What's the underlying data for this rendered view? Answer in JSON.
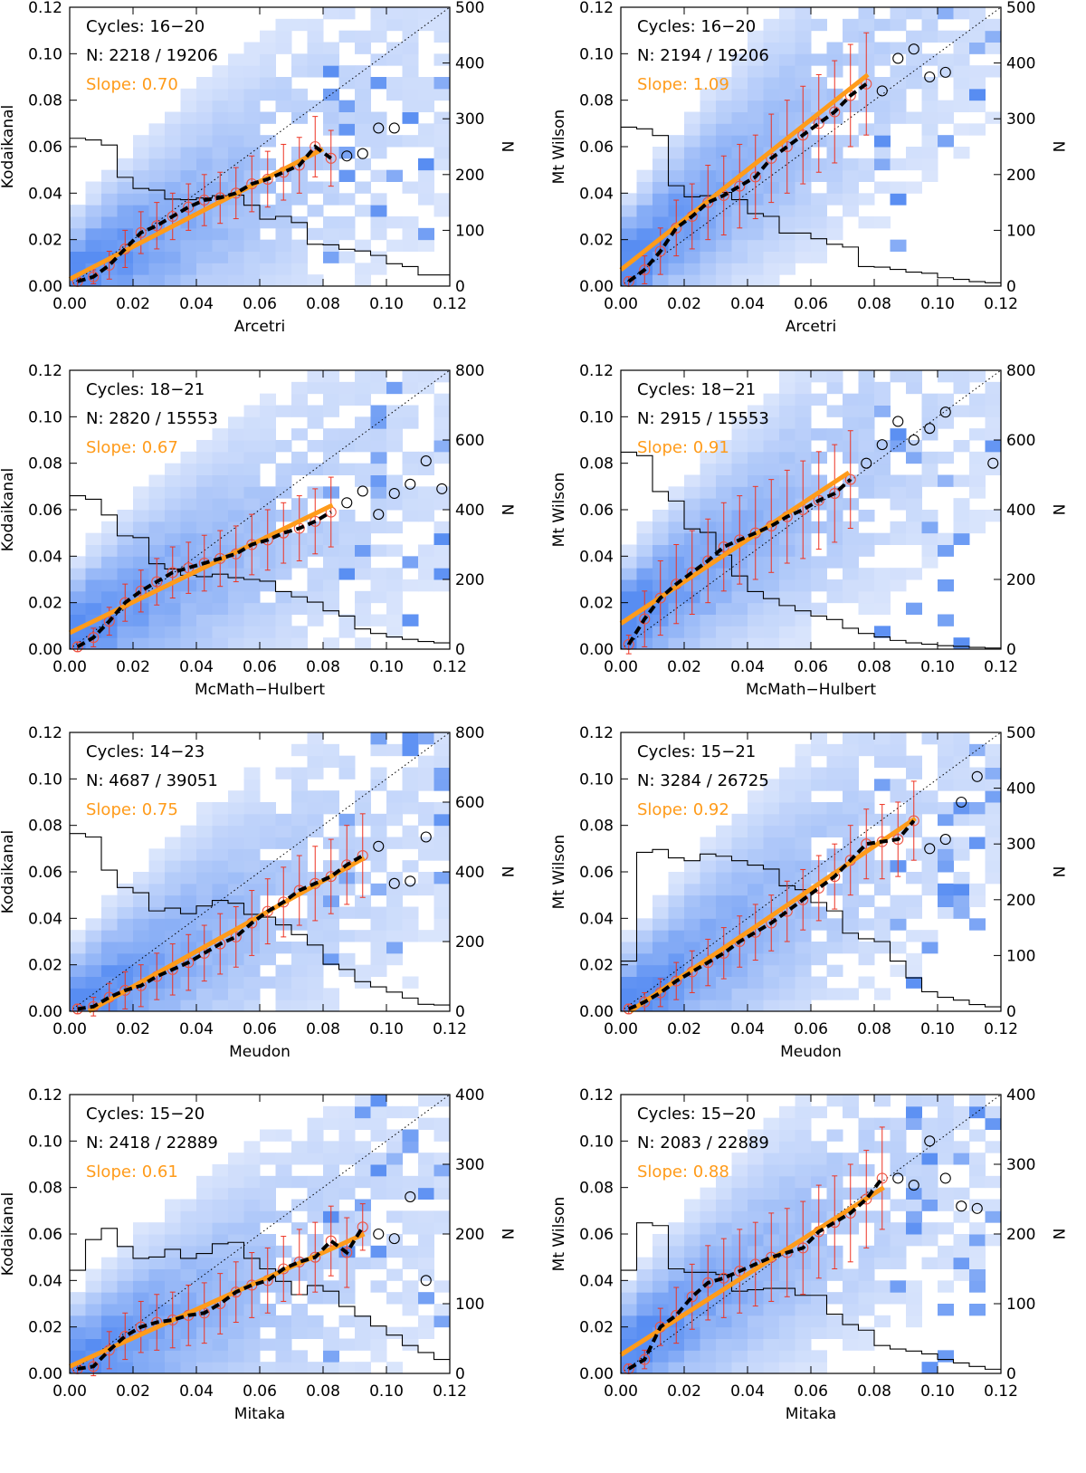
{
  "figure": {
    "description_title": ""
  },
  "colors": {
    "fit_line": "#ff9b1a",
    "error_bar": "#ee3322",
    "binned_point": "#ee5544",
    "excluded_point": "#000000",
    "histogram": "#000000",
    "heatmap_low": "#f0f4fe",
    "heatmap_high": "#3d7bf0"
  },
  "chart_data": [
    {
      "type": "scatter",
      "xlabel": "Arcetri",
      "ylabel": "Kodaikanal",
      "y2label": "N",
      "xlim": [
        0,
        0.12
      ],
      "ylim": [
        0,
        0.12
      ],
      "y2lim": [
        0,
        500
      ],
      "y2ticks": [
        0,
        100,
        200,
        300,
        400,
        500
      ],
      "cycles": "Cycles: 16−20",
      "n_text": "N: 2218 / 19206",
      "slope_text": "Slope: 0.70",
      "slope": 0.7,
      "fit_x": [
        0.0,
        0.08
      ],
      "fit_y": [
        0.003,
        0.059
      ],
      "binned_x": [
        0.0025,
        0.0075,
        0.0125,
        0.0175,
        0.0225,
        0.0275,
        0.0325,
        0.0375,
        0.0425,
        0.0475,
        0.0525,
        0.0575,
        0.0625,
        0.0675,
        0.0725,
        0.0775,
        0.0825
      ],
      "binned_y": [
        0.002,
        0.004,
        0.009,
        0.016,
        0.023,
        0.026,
        0.03,
        0.034,
        0.037,
        0.038,
        0.04,
        0.044,
        0.046,
        0.049,
        0.052,
        0.06,
        0.055
      ],
      "binned_err": [
        0.002,
        0.003,
        0.006,
        0.008,
        0.009,
        0.01,
        0.01,
        0.01,
        0.011,
        0.011,
        0.011,
        0.012,
        0.012,
        0.012,
        0.012,
        0.013,
        0.012
      ],
      "excluded_x": [
        0.0875,
        0.0925,
        0.0975,
        0.1025
      ],
      "excluded_y": [
        0.056,
        0.057,
        0.068,
        0.068
      ],
      "hist_edges_start": 0.0,
      "hist_bin": 0.005,
      "hist_counts": [
        265,
        262,
        253,
        195,
        175,
        172,
        156,
        155,
        158,
        162,
        163,
        145,
        120,
        125,
        114,
        75,
        74,
        66,
        63,
        55,
        40,
        35,
        20,
        20,
        12,
        9,
        6,
        3,
        0,
        0
      ]
    },
    {
      "type": "scatter",
      "xlabel": "Arcetri",
      "ylabel": "Mt Wilson",
      "y2label": "N",
      "xlim": [
        0,
        0.12
      ],
      "ylim": [
        0,
        0.12
      ],
      "y2lim": [
        0,
        500
      ],
      "y2ticks": [
        0,
        100,
        200,
        300,
        400,
        500
      ],
      "cycles": "Cycles: 16−20",
      "n_text": "N: 2194 / 19206",
      "slope_text": "Slope: 1.09",
      "slope": 1.09,
      "fit_x": [
        0.0,
        0.078
      ],
      "fit_y": [
        0.007,
        0.091
      ],
      "binned_x": [
        0.0025,
        0.0075,
        0.0125,
        0.0175,
        0.0225,
        0.0275,
        0.0325,
        0.0375,
        0.0425,
        0.0475,
        0.0525,
        0.0575,
        0.0625,
        0.0675,
        0.0725,
        0.0775
      ],
      "binned_y": [
        0.002,
        0.007,
        0.015,
        0.025,
        0.03,
        0.036,
        0.039,
        0.043,
        0.047,
        0.055,
        0.06,
        0.065,
        0.07,
        0.075,
        0.082,
        0.087
      ],
      "binned_err": [
        0.002,
        0.006,
        0.01,
        0.012,
        0.014,
        0.016,
        0.017,
        0.018,
        0.018,
        0.019,
        0.02,
        0.021,
        0.021,
        0.022,
        0.022,
        0.022
      ],
      "excluded_x": [
        0.0825,
        0.0875,
        0.0925,
        0.0975,
        0.1025
      ],
      "excluded_y": [
        0.084,
        0.098,
        0.102,
        0.09,
        0.092
      ],
      "hist_edges_start": 0.0,
      "hist_bin": 0.005,
      "hist_counts": [
        285,
        282,
        270,
        180,
        160,
        162,
        168,
        155,
        130,
        125,
        95,
        95,
        85,
        75,
        70,
        35,
        34,
        30,
        25,
        23,
        15,
        12,
        8,
        6,
        5,
        4,
        2,
        1,
        0,
        0
      ]
    },
    {
      "type": "scatter",
      "xlabel": "McMath−Hulbert",
      "ylabel": "Kodaikanal",
      "y2label": "N",
      "xlim": [
        0,
        0.12
      ],
      "ylim": [
        0,
        0.12
      ],
      "y2lim": [
        0,
        800
      ],
      "y2ticks": [
        0,
        200,
        400,
        600,
        800
      ],
      "cycles": "Cycles: 18−21",
      "n_text": "N: 2820 / 15553",
      "slope_text": "Slope: 0.67",
      "slope": 0.67,
      "fit_x": [
        0.0,
        0.083
      ],
      "fit_y": [
        0.007,
        0.062
      ],
      "binned_x": [
        0.0025,
        0.0075,
        0.0125,
        0.0175,
        0.0225,
        0.0275,
        0.0325,
        0.0375,
        0.0425,
        0.0475,
        0.0525,
        0.0575,
        0.0625,
        0.0675,
        0.0725,
        0.0775,
        0.0825
      ],
      "binned_y": [
        0.001,
        0.005,
        0.012,
        0.02,
        0.025,
        0.029,
        0.033,
        0.035,
        0.037,
        0.039,
        0.041,
        0.045,
        0.047,
        0.05,
        0.052,
        0.055,
        0.059
      ],
      "binned_err": [
        0.002,
        0.004,
        0.006,
        0.008,
        0.009,
        0.01,
        0.011,
        0.011,
        0.012,
        0.012,
        0.012,
        0.013,
        0.013,
        0.013,
        0.014,
        0.014,
        0.015
      ],
      "excluded_x": [
        0.0875,
        0.0925,
        0.0975,
        0.1025,
        0.1075,
        0.1125,
        0.1175
      ],
      "excluded_y": [
        0.063,
        0.068,
        0.058,
        0.067,
        0.071,
        0.081,
        0.069
      ],
      "hist_edges_start": 0.0,
      "hist_bin": 0.005,
      "hist_counts": [
        440,
        430,
        385,
        325,
        320,
        245,
        230,
        212,
        208,
        215,
        205,
        200,
        195,
        165,
        150,
        135,
        110,
        95,
        58,
        45,
        35,
        28,
        22,
        18,
        10,
        8,
        5,
        3,
        0,
        0
      ]
    },
    {
      "type": "scatter",
      "xlabel": "McMath−Hulbert",
      "ylabel": "Mt Wilson",
      "y2label": "N",
      "xlim": [
        0,
        0.12
      ],
      "ylim": [
        0,
        0.12
      ],
      "y2lim": [
        0,
        800
      ],
      "y2ticks": [
        0,
        200,
        400,
        600,
        800
      ],
      "cycles": "Cycles: 18−21",
      "n_text": "N: 2915 / 15553",
      "slope_text": "Slope: 0.91",
      "slope": 0.91,
      "fit_x": [
        0.0,
        0.072
      ],
      "fit_y": [
        0.011,
        0.076
      ],
      "binned_x": [
        0.0025,
        0.0075,
        0.0125,
        0.0175,
        0.0225,
        0.0275,
        0.0325,
        0.0375,
        0.0425,
        0.0475,
        0.0525,
        0.0575,
        0.0625,
        0.0675,
        0.0725
      ],
      "binned_y": [
        0.002,
        0.013,
        0.022,
        0.028,
        0.033,
        0.038,
        0.044,
        0.047,
        0.05,
        0.053,
        0.057,
        0.06,
        0.064,
        0.067,
        0.073
      ],
      "binned_err": [
        0.004,
        0.012,
        0.016,
        0.017,
        0.018,
        0.018,
        0.019,
        0.019,
        0.02,
        0.02,
        0.02,
        0.021,
        0.021,
        0.021,
        0.021
      ],
      "excluded_x": [
        0.0775,
        0.0825,
        0.0875,
        0.0925,
        0.0975,
        0.1025,
        0.1175
      ],
      "excluded_y": [
        0.08,
        0.088,
        0.098,
        0.09,
        0.095,
        0.102,
        0.08
      ],
      "hist_edges_start": 0.0,
      "hist_bin": 0.005,
      "hist_counts": [
        565,
        555,
        452,
        425,
        345,
        335,
        270,
        210,
        165,
        145,
        125,
        110,
        95,
        85,
        60,
        45,
        35,
        25,
        18,
        14,
        10,
        8,
        5,
        3,
        2,
        1,
        0,
        0,
        0,
        0
      ]
    },
    {
      "type": "scatter",
      "xlabel": "Meudon",
      "ylabel": "Kodaikanal",
      "y2label": "N",
      "xlim": [
        0,
        0.12
      ],
      "ylim": [
        0,
        0.12
      ],
      "y2lim": [
        0,
        800
      ],
      "y2ticks": [
        0,
        200,
        400,
        600,
        800
      ],
      "cycles": "Cycles: 14−23",
      "n_text": "N: 4687 / 39051",
      "slope_text": "Slope: 0.75",
      "slope": 0.75,
      "fit_x": [
        0.006,
        0.093
      ],
      "fit_y": [
        0.0,
        0.066
      ],
      "binned_x": [
        0.0025,
        0.0075,
        0.0125,
        0.0175,
        0.0225,
        0.0275,
        0.0325,
        0.0375,
        0.0425,
        0.0475,
        0.0525,
        0.0575,
        0.0625,
        0.0675,
        0.0725,
        0.0775,
        0.0825,
        0.0875,
        0.0925
      ],
      "binned_y": [
        0.001,
        0.002,
        0.006,
        0.009,
        0.011,
        0.015,
        0.018,
        0.021,
        0.025,
        0.029,
        0.032,
        0.038,
        0.043,
        0.047,
        0.052,
        0.055,
        0.058,
        0.063,
        0.067
      ],
      "binned_err": [
        0.002,
        0.004,
        0.006,
        0.008,
        0.009,
        0.01,
        0.011,
        0.012,
        0.012,
        0.013,
        0.013,
        0.014,
        0.014,
        0.015,
        0.015,
        0.016,
        0.016,
        0.017,
        0.018
      ],
      "excluded_x": [
        0.0975,
        0.1025,
        0.1075,
        0.1125
      ],
      "excluded_y": [
        0.071,
        0.055,
        0.056,
        0.075
      ],
      "hist_edges_start": 0.0,
      "hist_bin": 0.005,
      "hist_counts": [
        510,
        500,
        405,
        355,
        340,
        288,
        296,
        280,
        302,
        318,
        310,
        278,
        270,
        248,
        220,
        190,
        135,
        120,
        85,
        70,
        55,
        38,
        20,
        18,
        12,
        8,
        5,
        3,
        0,
        0
      ]
    },
    {
      "type": "scatter",
      "xlabel": "Meudon",
      "ylabel": "Mt Wilson",
      "y2label": "N",
      "xlim": [
        0,
        0.12
      ],
      "ylim": [
        0,
        0.12
      ],
      "y2lim": [
        0,
        500
      ],
      "y2ticks": [
        0,
        100,
        200,
        300,
        400,
        500
      ],
      "cycles": "Cycles: 15−21",
      "n_text": "N: 3284 / 26725",
      "slope_text": "Slope: 0.92",
      "slope": 0.92,
      "fit_x": [
        0.003,
        0.093
      ],
      "fit_y": [
        0.0,
        0.083
      ],
      "binned_x": [
        0.0025,
        0.0075,
        0.0125,
        0.0175,
        0.0225,
        0.0275,
        0.0325,
        0.0375,
        0.0425,
        0.0475,
        0.0525,
        0.0575,
        0.0625,
        0.0675,
        0.0725,
        0.0775,
        0.0825,
        0.0875,
        0.0925
      ],
      "binned_y": [
        0.001,
        0.004,
        0.008,
        0.013,
        0.017,
        0.021,
        0.025,
        0.03,
        0.034,
        0.038,
        0.043,
        0.048,
        0.053,
        0.058,
        0.065,
        0.072,
        0.073,
        0.074,
        0.082
      ],
      "binned_err": [
        0.002,
        0.004,
        0.006,
        0.008,
        0.009,
        0.01,
        0.011,
        0.011,
        0.012,
        0.012,
        0.013,
        0.013,
        0.014,
        0.014,
        0.015,
        0.015,
        0.016,
        0.016,
        0.017
      ],
      "excluded_x": [
        0.0975,
        0.1025,
        0.1075,
        0.1125
      ],
      "excluded_y": [
        0.07,
        0.074,
        0.09,
        0.101
      ],
      "hist_edges_start": 0.0,
      "hist_bin": 0.005,
      "hist_counts": [
        90,
        285,
        290,
        275,
        270,
        282,
        278,
        270,
        262,
        255,
        225,
        218,
        195,
        180,
        140,
        130,
        125,
        90,
        60,
        35,
        25,
        20,
        12,
        8,
        5,
        3,
        2,
        1,
        0,
        0
      ]
    },
    {
      "type": "scatter",
      "xlabel": "Mitaka",
      "ylabel": "Kodaikanal",
      "y2label": "N",
      "xlim": [
        0,
        0.12
      ],
      "ylim": [
        0,
        0.12
      ],
      "y2lim": [
        0,
        400
      ],
      "y2ticks": [
        0,
        100,
        200,
        300,
        400
      ],
      "cycles": "Cycles: 15−20",
      "n_text": "N: 2418 / 22889",
      "slope_text": "Slope: 0.61",
      "slope": 0.61,
      "fit_x": [
        0.0,
        0.093
      ],
      "fit_y": [
        0.003,
        0.06
      ],
      "binned_x": [
        0.0025,
        0.0075,
        0.0125,
        0.0175,
        0.0225,
        0.0275,
        0.0325,
        0.0375,
        0.0425,
        0.0475,
        0.0525,
        0.0575,
        0.0625,
        0.0675,
        0.0725,
        0.0775,
        0.0825,
        0.0875,
        0.0925
      ],
      "binned_y": [
        0.002,
        0.003,
        0.01,
        0.016,
        0.02,
        0.022,
        0.023,
        0.025,
        0.026,
        0.03,
        0.035,
        0.038,
        0.04,
        0.045,
        0.048,
        0.05,
        0.057,
        0.052,
        0.063
      ],
      "binned_err": [
        0.002,
        0.004,
        0.008,
        0.01,
        0.011,
        0.012,
        0.012,
        0.013,
        0.013,
        0.013,
        0.013,
        0.014,
        0.014,
        0.014,
        0.014,
        0.015,
        0.015,
        0.015,
        0.01
      ],
      "excluded_x": [
        0.0975,
        0.1025,
        0.1075,
        0.1125
      ],
      "excluded_y": [
        0.06,
        0.058,
        0.076,
        0.04
      ],
      "hist_edges_start": 0.0,
      "hist_bin": 0.005,
      "hist_counts": [
        148,
        192,
        208,
        182,
        165,
        167,
        178,
        165,
        172,
        186,
        188,
        165,
        150,
        132,
        113,
        126,
        118,
        96,
        82,
        68,
        55,
        40,
        30,
        20,
        12,
        8,
        5,
        2,
        0,
        0
      ]
    },
    {
      "type": "scatter",
      "xlabel": "Mitaka",
      "ylabel": "Mt Wilson",
      "y2label": "N",
      "xlim": [
        0,
        0.12
      ],
      "ylim": [
        0,
        0.12
      ],
      "y2lim": [
        0,
        400
      ],
      "y2ticks": [
        0,
        100,
        200,
        300,
        400
      ],
      "cycles": "Cycles: 15−20",
      "n_text": "N: 2083 / 22889",
      "slope_text": "Slope: 0.88",
      "slope": 0.88,
      "fit_x": [
        0.0,
        0.083
      ],
      "fit_y": [
        0.008,
        0.08
      ],
      "binned_x": [
        0.0025,
        0.0075,
        0.0125,
        0.0175,
        0.0225,
        0.0275,
        0.0325,
        0.0375,
        0.0425,
        0.0475,
        0.0525,
        0.0575,
        0.0625,
        0.0675,
        0.0725,
        0.0775,
        0.0825
      ],
      "binned_y": [
        0.002,
        0.006,
        0.02,
        0.025,
        0.033,
        0.039,
        0.041,
        0.044,
        0.047,
        0.05,
        0.052,
        0.054,
        0.061,
        0.065,
        0.069,
        0.075,
        0.084
      ],
      "binned_err": [
        0.002,
        0.004,
        0.008,
        0.012,
        0.014,
        0.016,
        0.017,
        0.018,
        0.018,
        0.019,
        0.019,
        0.02,
        0.02,
        0.02,
        0.021,
        0.021,
        0.022
      ],
      "excluded_x": [
        0.0875,
        0.0925,
        0.0975,
        0.1025,
        0.1075,
        0.1125
      ],
      "excluded_y": [
        0.084,
        0.081,
        0.1,
        0.084,
        0.072,
        0.071
      ],
      "hist_edges_start": 0.0,
      "hist_bin": 0.005,
      "hist_counts": [
        148,
        216,
        212,
        150,
        145,
        145,
        142,
        118,
        120,
        122,
        122,
        112,
        112,
        85,
        70,
        62,
        40,
        35,
        32,
        28,
        20,
        15,
        10,
        6,
        4,
        2,
        1,
        0,
        0,
        0
      ]
    }
  ]
}
